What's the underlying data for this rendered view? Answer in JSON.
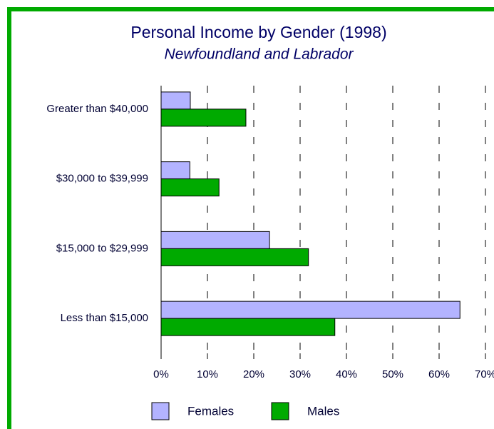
{
  "chart_data": {
    "type": "hbar",
    "title": "Personal Income by Gender (1998)",
    "subtitle": "Newfoundland and Labrador",
    "categories": [
      "Greater than $40,000",
      "$30,000 to $39,999",
      "$15,000 to $29,999",
      "Less than $15,000"
    ],
    "series": [
      {
        "name": "Females",
        "color": "#b3b3ff",
        "values": [
          6.3,
          6.2,
          23.4,
          64.5
        ]
      },
      {
        "name": "Males",
        "color": "#00aa00",
        "values": [
          18.3,
          12.5,
          31.8,
          37.5
        ]
      }
    ],
    "xlim": [
      0,
      70
    ],
    "xticks": [
      {
        "value": 0,
        "label": "0%"
      },
      {
        "value": 10,
        "label": "10%"
      },
      {
        "value": 20,
        "label": "20%"
      },
      {
        "value": 30,
        "label": "30%"
      },
      {
        "value": 40,
        "label": "40%"
      },
      {
        "value": 50,
        "label": "50%"
      },
      {
        "value": 60,
        "label": "60%"
      },
      {
        "value": 70,
        "label": "70%"
      }
    ],
    "grid": true,
    "legend": "bottom"
  }
}
